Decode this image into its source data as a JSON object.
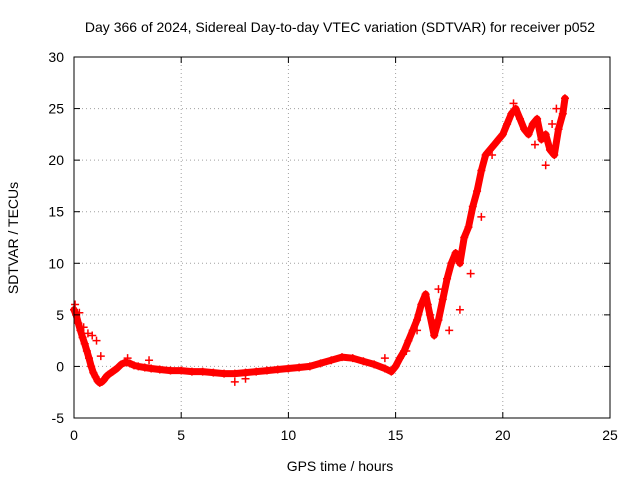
{
  "chart_data": {
    "type": "scatter",
    "title": "Day 366 of 2024, Sidereal Day-to-day VTEC variation (SDTVAR) for receiver p052",
    "xlabel": "GPS time / hours",
    "ylabel": "SDTVAR / TECUs",
    "xlim": [
      0,
      25
    ],
    "ylim": [
      -5,
      30
    ],
    "x_ticks": [
      0,
      5,
      10,
      15,
      20,
      25
    ],
    "y_ticks": [
      -5,
      0,
      5,
      10,
      15,
      20,
      25,
      30
    ],
    "x_tick_labels": [
      "0",
      "5",
      "10",
      "15",
      "20",
      "25"
    ],
    "y_tick_labels": [
      "-5",
      "0",
      "5",
      "10",
      "15",
      "20",
      "25",
      "30"
    ],
    "grid": true,
    "marker": "plus",
    "series": [
      {
        "name": "SDTVAR",
        "color": "#ff0000",
        "x": [
          0.0,
          0.1,
          0.2,
          0.3,
          0.4,
          0.5,
          0.6,
          0.7,
          0.8,
          0.9,
          1.0,
          1.1,
          1.2,
          1.3,
          1.4,
          1.5,
          1.6,
          1.8,
          2.0,
          2.2,
          2.4,
          2.6,
          2.8,
          3.0,
          3.3,
          3.6,
          4.0,
          4.5,
          5.0,
          5.5,
          6.0,
          6.5,
          7.0,
          7.5,
          8.0,
          8.5,
          9.0,
          9.5,
          10.0,
          10.5,
          11.0,
          11.5,
          12.0,
          12.5,
          13.0,
          13.5,
          14.0,
          14.5,
          14.8,
          15.0,
          15.2,
          15.4,
          15.6,
          15.8,
          16.0,
          16.2,
          16.4,
          16.6,
          16.8,
          17.0,
          17.2,
          17.4,
          17.6,
          17.8,
          18.0,
          18.2,
          18.4,
          18.6,
          18.8,
          19.0,
          19.2,
          19.4,
          19.6,
          19.8,
          20.0,
          20.2,
          20.4,
          20.6,
          20.8,
          21.0,
          21.2,
          21.4,
          21.6,
          21.8,
          22.0,
          22.2,
          22.4,
          22.6,
          22.8,
          22.9
        ],
        "values": [
          5.5,
          5.0,
          4.2,
          3.5,
          2.8,
          2.2,
          1.5,
          0.8,
          0.0,
          -0.6,
          -1.0,
          -1.4,
          -1.6,
          -1.5,
          -1.3,
          -1.0,
          -0.8,
          -0.5,
          -0.2,
          0.2,
          0.4,
          0.3,
          0.1,
          0.0,
          -0.1,
          -0.2,
          -0.3,
          -0.4,
          -0.4,
          -0.5,
          -0.5,
          -0.6,
          -0.7,
          -0.7,
          -0.6,
          -0.5,
          -0.4,
          -0.3,
          -0.2,
          -0.1,
          0.0,
          0.3,
          0.6,
          0.9,
          0.8,
          0.5,
          0.2,
          -0.2,
          -0.5,
          0.0,
          0.8,
          1.5,
          2.5,
          3.5,
          4.5,
          6.0,
          7.0,
          5.0,
          3.0,
          4.5,
          6.5,
          8.5,
          10.0,
          11.0,
          10.0,
          12.5,
          13.5,
          15.5,
          17.0,
          19.0,
          20.5,
          21.0,
          21.5,
          22.0,
          22.5,
          23.5,
          24.5,
          25.0,
          24.0,
          23.0,
          22.5,
          23.5,
          24.0,
          22.0,
          22.5,
          21.0,
          20.5,
          23.0,
          24.5,
          26.0
        ]
      },
      {
        "name": "SDTVAR (scatter band)",
        "color": "#ff0000",
        "x": [
          0.05,
          0.25,
          0.45,
          0.65,
          0.85,
          1.05,
          1.25,
          2.5,
          3.5,
          7.5,
          8.0,
          14.5,
          15.5,
          16.0,
          16.5,
          17.0,
          17.5,
          18.0,
          18.5,
          19.0,
          19.5,
          20.5,
          21.5,
          22.0,
          22.3,
          22.5
        ],
        "values": [
          6.0,
          5.2,
          3.8,
          3.2,
          3.0,
          2.5,
          1.0,
          0.8,
          0.6,
          -1.5,
          -1.2,
          0.8,
          1.5,
          3.5,
          6.0,
          7.5,
          3.5,
          5.5,
          9.0,
          14.5,
          20.5,
          25.5,
          21.5,
          19.5,
          23.5,
          25.0
        ]
      }
    ]
  }
}
